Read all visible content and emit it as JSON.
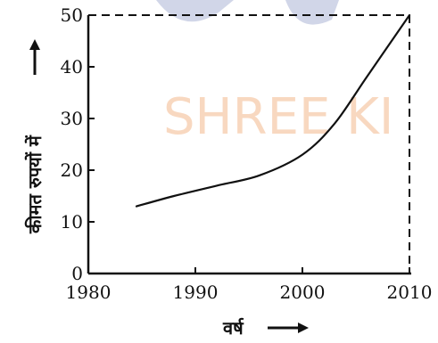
{
  "watermark": {
    "text": "SHREE KI",
    "color": "#f4b98e",
    "logo_color": "#9aa3cc"
  },
  "chart_data": {
    "type": "line",
    "title": "",
    "xlabel": "वर्ष",
    "ylabel": "कीमत रुपयों में",
    "xlim": [
      1980,
      2010
    ],
    "ylim": [
      0,
      50
    ],
    "x_ticks": [
      "1980",
      "1990",
      "2000",
      "2010"
    ],
    "y_ticks": [
      "0",
      "10",
      "20",
      "30",
      "40",
      "50"
    ],
    "series": [
      {
        "x": [
          1984.5,
          1988,
          1992,
          1996,
          2000,
          2003,
          2006,
          2010
        ],
        "y": [
          13,
          15,
          17,
          19,
          23,
          29,
          38,
          50
        ]
      }
    ],
    "dashed_frame": true,
    "line_color": "#111111"
  }
}
